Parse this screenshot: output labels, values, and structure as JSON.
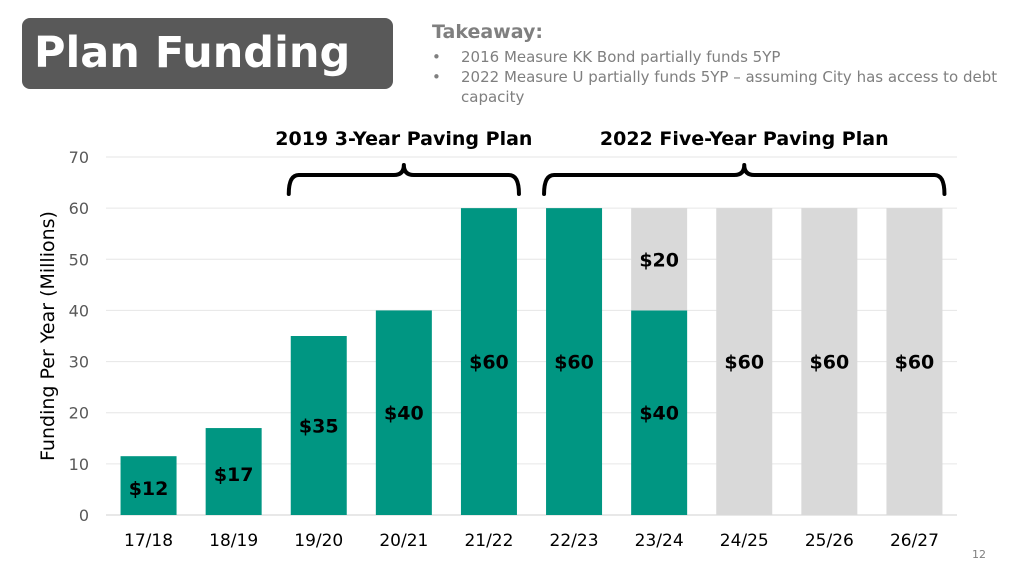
{
  "slide": {
    "title": "Plan Funding",
    "takeaway_heading": "Takeaway:",
    "bullets": [
      "2016 Measure KK Bond partially funds 5YP",
      "2022 Measure U partially funds 5YP – assuming City has access to debt capacity"
    ],
    "bullet_glyph": "•",
    "page_number": "12"
  },
  "colors": {
    "funded": "#009682",
    "unfunded": "#d9d9d9",
    "title_bg": "#595959"
  },
  "chart_data": {
    "type": "bar",
    "stacked": true,
    "ylabel": "Funding Per Year (Millions)",
    "xlabel": "",
    "ylim": [
      0,
      70
    ],
    "yticks": [
      0,
      10,
      20,
      30,
      40,
      50,
      60,
      70
    ],
    "grid": true,
    "categories": [
      "17/18",
      "18/19",
      "19/20",
      "20/21",
      "21/22",
      "22/23",
      "23/24",
      "24/25",
      "25/26",
      "26/27"
    ],
    "series": [
      {
        "color": "#009682",
        "values": [
          11.5,
          17,
          35,
          40,
          60,
          60,
          40,
          0,
          0,
          0
        ],
        "labels": [
          "$12",
          "$17",
          "$35",
          "$40",
          "$60",
          "$60",
          "$40",
          "",
          "",
          ""
        ]
      },
      {
        "color": "#d9d9d9",
        "values": [
          0,
          0,
          0,
          0,
          0,
          0,
          20,
          60,
          60,
          60
        ],
        "labels": [
          "",
          "",
          "",
          "",
          "",
          "",
          "$20",
          "$60",
          "$60",
          "$60"
        ]
      }
    ],
    "brackets": [
      {
        "label": "2019 3-Year Paving Plan",
        "from": 2,
        "to": 4
      },
      {
        "label": "2022 Five-Year Paving Plan",
        "from": 5,
        "to": 9
      }
    ]
  }
}
